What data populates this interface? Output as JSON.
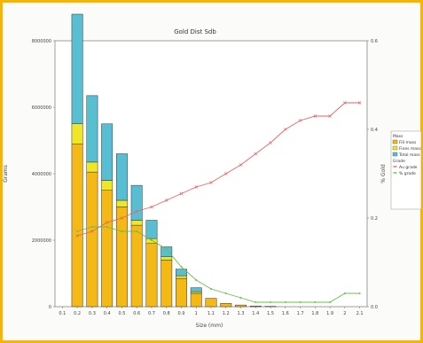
{
  "chart_data": {
    "type": "bar",
    "title": "Gold Dist Sdb",
    "xlabel": "Size (mm)",
    "ylabel": "Grams",
    "y2label": "% Gold",
    "categories": [
      "0.1",
      "0.2",
      "0.3",
      "0.4",
      "0.5",
      "0.6",
      "0.7",
      "0.8",
      "0.9",
      "1",
      "1.1",
      "1.2",
      "1.3",
      "1.4",
      "1.5",
      "1.6",
      "1.7",
      "1.8",
      "1.9",
      "2",
      "2.1"
    ],
    "y_ticks": [
      "0",
      "2000000",
      "4000000",
      "6000000",
      "8000000"
    ],
    "y2_ticks": [
      "0.0",
      "0.2",
      "0.4",
      "0.6"
    ],
    "ylim": [
      0,
      8000000
    ],
    "y2lim": [
      0,
      0.6
    ],
    "grid": false,
    "legend_position": "right",
    "legend": {
      "title1": "Mass",
      "bar_items": [
        "Fill mass",
        "Fines mass",
        "Total mass"
      ],
      "title2": "Grade",
      "line_items": [
        "Au grade",
        "% grade"
      ]
    },
    "series": [
      {
        "name": "Fill mass",
        "kind": "bar",
        "color": "#f5b916",
        "values": [
          0,
          4900000,
          4050000,
          3500000,
          3000000,
          2450000,
          1900000,
          1400000,
          850000,
          400000,
          250000,
          100000,
          50000,
          20000,
          10000,
          0,
          0,
          0,
          0,
          0,
          0
        ]
      },
      {
        "name": "Fines mass",
        "kind": "bar",
        "color": "#eee627",
        "values": [
          0,
          600000,
          300000,
          300000,
          200000,
          150000,
          150000,
          100000,
          80000,
          50000,
          0,
          0,
          0,
          0,
          0,
          0,
          0,
          0,
          0,
          0,
          0
        ]
      },
      {
        "name": "Total mass",
        "kind": "bar",
        "color": "#58bfd3",
        "values": [
          0,
          3300000,
          2000000,
          1700000,
          1400000,
          1050000,
          550000,
          300000,
          200000,
          120000,
          0,
          0,
          0,
          0,
          0,
          0,
          0,
          0,
          0,
          0,
          0
        ]
      },
      {
        "name": "Au grade",
        "kind": "line",
        "axis": "right",
        "color": "#ea6262",
        "values": [
          null,
          0.16,
          0.17,
          0.19,
          0.2,
          0.215,
          0.225,
          0.24,
          0.255,
          0.27,
          0.28,
          0.3,
          0.32,
          0.345,
          0.37,
          0.4,
          0.42,
          0.43,
          0.43,
          0.46,
          0.46
        ]
      },
      {
        "name": "% grade",
        "kind": "line",
        "axis": "right",
        "color": "#6abf4b",
        "values": [
          null,
          0.17,
          0.18,
          0.18,
          0.17,
          0.17,
          0.15,
          0.13,
          0.09,
          0.06,
          0.04,
          0.03,
          0.02,
          0.01,
          0.01,
          0.01,
          0.01,
          0.01,
          0.01,
          0.03,
          0.03
        ]
      }
    ]
  }
}
